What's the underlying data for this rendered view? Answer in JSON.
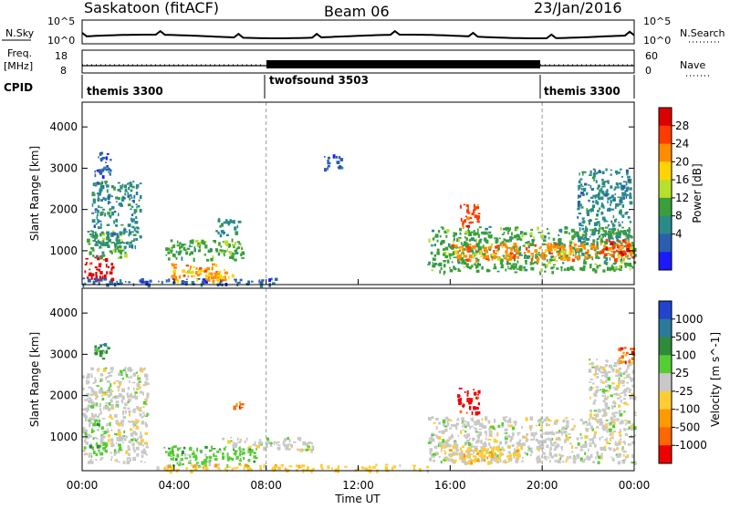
{
  "header": {
    "title_left": "Saskatoon (fitACF)",
    "title_center": "Beam 06",
    "title_right": "23/Jan/2016"
  },
  "noise_panel": {
    "left_label": "N.Sky",
    "right_label": "N.Search",
    "tick_top": "10^5",
    "tick_bottom": "10^0"
  },
  "freq_panel": {
    "left_label_top": "Freq.",
    "left_label_bottom": "[MHz]",
    "right_label": "Nave",
    "left_ticks": [
      "18",
      "8"
    ],
    "right_ticks": [
      "60",
      "0"
    ]
  },
  "cpid": {
    "label": "CPID",
    "segments": [
      {
        "name": "themis 3300",
        "start": 0,
        "end": 8
      },
      {
        "name": "twofsound 3503",
        "start": 8,
        "end": 20
      },
      {
        "name": "themis 3300",
        "start": 20,
        "end": 24
      }
    ]
  },
  "power_colorbar": {
    "label": "Power [dB]",
    "ticks": [
      "28",
      "24",
      "20",
      "16",
      "12",
      "8",
      "4"
    ],
    "colors": [
      "#dd0000",
      "#ff3b00",
      "#ff8c00",
      "#ffd400",
      "#b8e02a",
      "#3a9e3a",
      "#2a8a8a",
      "#2a5fb0",
      "#1a1aff"
    ]
  },
  "velocity_colorbar": {
    "label": "Velocity [m s^-1]",
    "ticks": [
      "1000",
      "500",
      "100",
      "25",
      "-25",
      "-100",
      "-500",
      "-1000"
    ],
    "colors": [
      "#2244cc",
      "#2a7a9a",
      "#2e8b3a",
      "#55cc33",
      "#c8c8c8",
      "#ffcc33",
      "#ff9900",
      "#ff6600",
      "#ee0000"
    ]
  },
  "chart_data": [
    {
      "type": "heatmap",
      "title": "Power",
      "ylabel": "Slant Range [km]",
      "ylim": [
        180,
        4600
      ],
      "xlim": [
        0,
        24
      ],
      "y_ticks": [
        1000,
        2000,
        3000,
        4000
      ],
      "x_dividers": [
        8,
        20
      ],
      "regions": [
        {
          "t0": 0.1,
          "t1": 1.3,
          "r0": 300,
          "r1": 900,
          "level": 0
        },
        {
          "t0": 0.2,
          "t1": 1.9,
          "r0": 850,
          "r1": 1500,
          "level": 5
        },
        {
          "t0": 0.4,
          "t1": 2.5,
          "r0": 1100,
          "r1": 2700,
          "level": 6
        },
        {
          "t0": 0.5,
          "t1": 1.2,
          "r0": 2800,
          "r1": 3400,
          "level": 7
        },
        {
          "t0": 0.0,
          "t1": 8.5,
          "r0": 200,
          "r1": 350,
          "level": 7
        },
        {
          "t0": 3.6,
          "t1": 7.0,
          "r0": 800,
          "r1": 1300,
          "level": 5
        },
        {
          "t0": 3.8,
          "t1": 6.2,
          "r0": 300,
          "r1": 700,
          "level": 2
        },
        {
          "t0": 4.3,
          "t1": 6.5,
          "r0": 350,
          "r1": 550,
          "level": 3
        },
        {
          "t0": 5.8,
          "t1": 6.8,
          "r0": 1400,
          "r1": 1800,
          "level": 6
        },
        {
          "t0": 10.5,
          "t1": 11.3,
          "r0": 3000,
          "r1": 3400,
          "level": 7
        },
        {
          "t0": 15.0,
          "t1": 24.0,
          "r0": 500,
          "r1": 1600,
          "level": 5
        },
        {
          "t0": 16.0,
          "t1": 24.0,
          "r0": 800,
          "r1": 1200,
          "level": 2
        },
        {
          "t0": 16.4,
          "t1": 17.3,
          "r0": 1600,
          "r1": 2200,
          "level": 1
        },
        {
          "t0": 21.5,
          "t1": 23.8,
          "r0": 1200,
          "r1": 3000,
          "level": 6
        },
        {
          "t0": 22.5,
          "t1": 24.0,
          "r0": 900,
          "r1": 1300,
          "level": 1
        }
      ]
    },
    {
      "type": "heatmap",
      "title": "Velocity",
      "ylabel": "Slant Range [km]",
      "xlabel": "Time UT",
      "ylim": [
        180,
        4600
      ],
      "xlim": [
        0,
        24
      ],
      "y_ticks": [
        1000,
        2000,
        3000,
        4000
      ],
      "x_ticks": [
        "00:00",
        "04:00",
        "08:00",
        "12:00",
        "16:00",
        "20:00",
        "00:00"
      ],
      "x_dividers": [
        8,
        20
      ],
      "regions": [
        {
          "t0": 0.0,
          "t1": 2.8,
          "r0": 400,
          "r1": 2700,
          "level": 4
        },
        {
          "t0": 0.3,
          "t1": 1.0,
          "r0": 600,
          "r1": 1400,
          "level": 3
        },
        {
          "t0": 0.5,
          "t1": 1.1,
          "r0": 2900,
          "r1": 3400,
          "level": 2
        },
        {
          "t0": 3.5,
          "t1": 7.5,
          "r0": 300,
          "r1": 800,
          "level": 3
        },
        {
          "t0": 6.0,
          "t1": 10.0,
          "r0": 700,
          "r1": 1000,
          "level": 4
        },
        {
          "t0": 6.5,
          "t1": 7.0,
          "r0": 1600,
          "r1": 1900,
          "level": 7
        },
        {
          "t0": 3.0,
          "t1": 15.0,
          "r0": 200,
          "r1": 350,
          "level": 5
        },
        {
          "t0": 15.0,
          "t1": 24.0,
          "r0": 400,
          "r1": 1500,
          "level": 4
        },
        {
          "t0": 15.5,
          "t1": 19.0,
          "r0": 400,
          "r1": 800,
          "level": 5
        },
        {
          "t0": 16.3,
          "t1": 17.3,
          "r0": 1600,
          "r1": 2200,
          "level": 8
        },
        {
          "t0": 22.0,
          "t1": 24.0,
          "r0": 1200,
          "r1": 2900,
          "level": 4
        },
        {
          "t0": 23.3,
          "t1": 24.0,
          "r0": 2800,
          "r1": 3200,
          "level": 7
        }
      ]
    }
  ]
}
